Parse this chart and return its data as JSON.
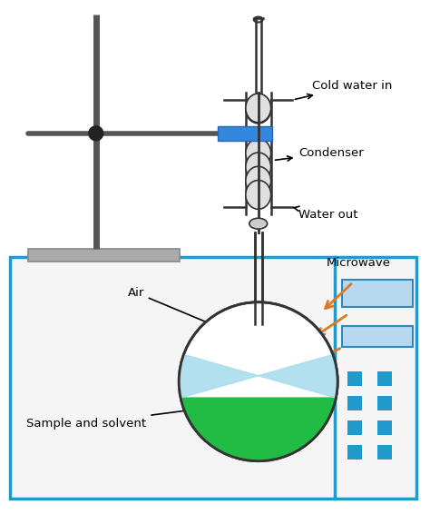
{
  "bg_color": "#ffffff",
  "fig_w": 4.74,
  "fig_h": 5.66,
  "dpi": 100,
  "blue_color": "#2299cc",
  "dark_color": "#333333",
  "gray_rod": "#555555",
  "orange": "#e07820",
  "label_cold_water": "Cold water in",
  "label_condenser": "Condenser",
  "label_water_out": "Water out",
  "label_air": "Air",
  "label_sample": "Sample and solvent",
  "label_microwave": "Microwave"
}
